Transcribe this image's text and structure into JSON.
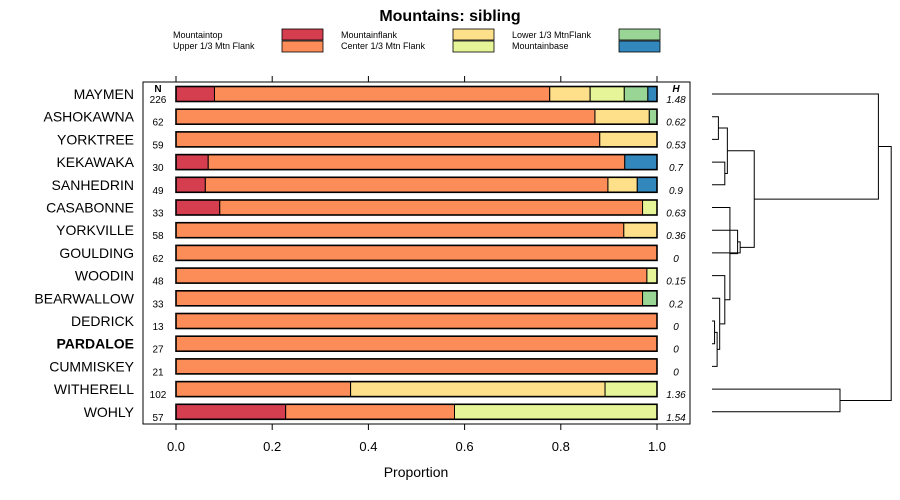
{
  "chart_data": {
    "type": "bar",
    "stacked": true,
    "orientation": "horizontal",
    "title": "Mountains: sibling",
    "xlabel": "Proportion",
    "ylabel": "",
    "xlim": [
      0,
      1
    ],
    "xticks": [
      "0.0",
      "0.2",
      "0.4",
      "0.6",
      "0.8",
      "1.0"
    ],
    "n_header": "N",
    "h_header": "H",
    "legend_position": "top",
    "highlight_category": "PARDALOE",
    "categories": [
      "MAYMEN",
      "ASHOKAWNA",
      "YORKTREE",
      "KEKAWAKA",
      "SANHEDRIN",
      "CASABONNE",
      "YORKVILLE",
      "GOULDING",
      "WOODIN",
      "BEARWALLOW",
      "DEDRICK",
      "PARDALOE",
      "CUMMISKEY",
      "WITHERELL",
      "WOHLY"
    ],
    "n": [
      "226",
      "62",
      "59",
      "30",
      "49",
      "33",
      "58",
      "62",
      "48",
      "33",
      "13",
      "27",
      "21",
      "102",
      "57"
    ],
    "h": [
      "1.48",
      "0.62",
      "0.53",
      "0.7",
      "0.9",
      "0.63",
      "0.36",
      "0",
      "0.15",
      "0.2",
      "0",
      "0",
      "0",
      "1.36",
      "1.54"
    ],
    "series": [
      {
        "name": "Mountaintop",
        "color": "#d53e4f",
        "values": [
          0.08,
          0,
          0,
          0.067,
          0.061,
          0.091,
          0,
          0,
          0,
          0,
          0,
          0,
          0,
          0,
          0.228
        ]
      },
      {
        "name": "Upper 1/3 Mtn Flank",
        "color": "#fc8d59",
        "values": [
          0.697,
          0.871,
          0.881,
          0.866,
          0.837,
          0.879,
          0.931,
          1.0,
          0.979,
          0.97,
          1.0,
          1.0,
          1.0,
          0.363,
          0.351
        ]
      },
      {
        "name": "Mountainflank",
        "color": "#fee08b",
        "values": [
          0.084,
          0.113,
          0.119,
          0,
          0.061,
          0,
          0.069,
          0,
          0,
          0,
          0,
          0,
          0,
          0.529,
          0
        ]
      },
      {
        "name": "Center 1/3 Mtn Flank",
        "color": "#e6f598",
        "values": [
          0.071,
          0,
          0,
          0,
          0,
          0.03,
          0,
          0,
          0.021,
          0,
          0,
          0,
          0,
          0.108,
          0.421
        ]
      },
      {
        "name": "Lower 1/3 MtnFlank",
        "color": "#99d594",
        "values": [
          0.049,
          0.016,
          0,
          0,
          0,
          0,
          0,
          0,
          0,
          0.03,
          0,
          0,
          0,
          0,
          0
        ]
      },
      {
        "name": "Mountainbase",
        "color": "#3288bd",
        "values": [
          0.019,
          0,
          0,
          0.067,
          0.041,
          0,
          0,
          0,
          0,
          0,
          0,
          0,
          0,
          0,
          0
        ]
      }
    ],
    "dendrogram": {
      "description": "hierarchical clustering of rows by composition",
      "merges": [
        {
          "left": "ASHOKAWNA",
          "right": "YORKTREE",
          "height": 0.05
        },
        {
          "left": "KEKAWAKA",
          "right": "SANHEDRIN",
          "height": 0.1
        },
        {
          "left": "m1",
          "right": "m2",
          "height": 0.12
        },
        {
          "left": "DEDRICK",
          "right": "PARDALOE",
          "height": 0.02
        },
        {
          "left": "m4",
          "right": "CUMMISKEY",
          "height": 0.04
        },
        {
          "left": "BEARWALLOW",
          "right": "m5",
          "height": 0.06
        },
        {
          "left": "WOODIN",
          "right": "m6",
          "height": 0.1
        },
        {
          "left": "CASABONNE",
          "right": "m7",
          "height": 0.14
        },
        {
          "left": "YORKVILLE",
          "right": "m8",
          "height": 0.2
        },
        {
          "left": "GOULDING",
          "right": "m9",
          "height": 0.22
        },
        {
          "left": "m3",
          "right": "m10",
          "height": 0.33
        },
        {
          "left": "MAYMEN",
          "right": "m11",
          "height": 1.3
        },
        {
          "left": "WITHERELL",
          "right": "WOHLY",
          "height": 1.0
        },
        {
          "left": "m12",
          "right": "m13",
          "height": 1.4
        }
      ]
    }
  }
}
